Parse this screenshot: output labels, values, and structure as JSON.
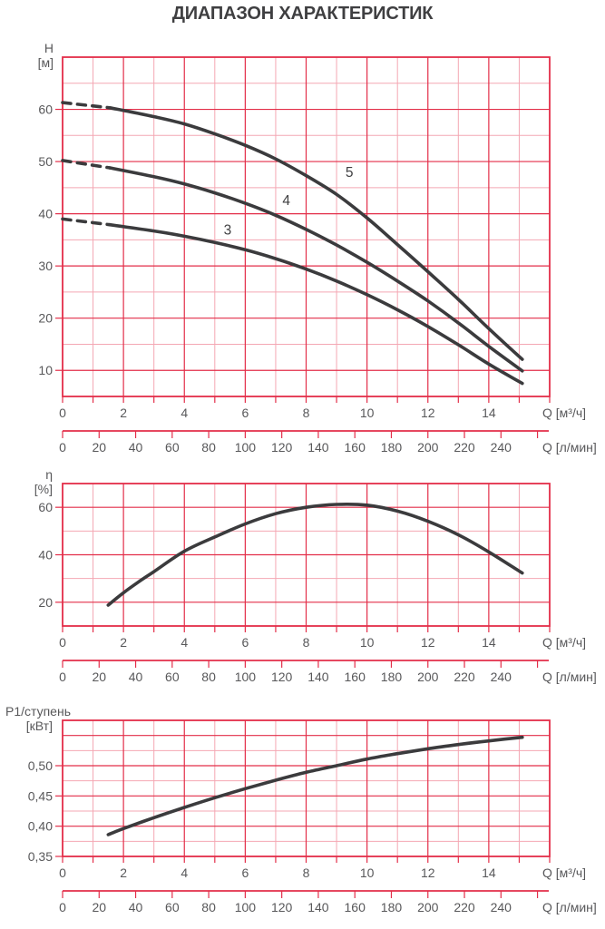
{
  "title": "ДИАПАЗОН ХАРАКТЕРИСТИК",
  "colors": {
    "grid_major": "#e32e49",
    "grid_minor": "#f4a7b3",
    "curve": "#3b3b3d",
    "tick_text": "#58585a",
    "label_text": "#3f3f41"
  },
  "chart_data": [
    {
      "type": "line",
      "id": "head",
      "ylabel_lines": [
        "H",
        "[м]"
      ],
      "xlabel": "Q [м³/ч]",
      "xlabel2": "Q [л/мин]",
      "xlim": [
        0,
        16
      ],
      "x_major": 2,
      "x_minor": 1,
      "ylim": [
        5,
        70
      ],
      "y_major": 10,
      "y_minor": 5,
      "x_ticks": [
        0,
        2,
        4,
        6,
        8,
        10,
        12,
        14
      ],
      "x_tick_labels": [
        "0",
        "2",
        "4",
        "6",
        "8",
        "10",
        "12",
        "14"
      ],
      "y_ticks": [
        10,
        20,
        30,
        40,
        50,
        60
      ],
      "y_tick_labels": [
        "10",
        "20",
        "30",
        "40",
        "50",
        "60"
      ],
      "x2_ticks": [
        0,
        20,
        40,
        60,
        80,
        100,
        120,
        140,
        160,
        180,
        200,
        220,
        240,
        260
      ],
      "x2_tick_labels": [
        "0",
        "20",
        "40",
        "60",
        "80",
        "100",
        "120",
        "140",
        "160",
        "180",
        "200",
        "220",
        "240",
        ""
      ],
      "x2_units_per_x1": 16.6667,
      "series": [
        {
          "name": "3",
          "dash_points": [
            [
              0,
              39.0
            ],
            [
              1.55,
              37.9
            ]
          ],
          "points": [
            [
              1.55,
              37.9
            ],
            [
              3,
              36.7
            ],
            [
              4,
              35.7
            ],
            [
              5,
              34.5
            ],
            [
              6,
              33.1
            ],
            [
              7,
              31.4
            ],
            [
              8,
              29.4
            ],
            [
              9,
              27.1
            ],
            [
              10,
              24.5
            ],
            [
              11,
              21.6
            ],
            [
              12,
              18.4
            ],
            [
              13,
              14.9
            ],
            [
              14,
              11.2
            ],
            [
              15.1,
              7.5
            ]
          ]
        },
        {
          "name": "4",
          "dash_points": [
            [
              0,
              50.2
            ],
            [
              1.55,
              48.8
            ]
          ],
          "points": [
            [
              1.55,
              48.8
            ],
            [
              3,
              47.1
            ],
            [
              4,
              45.7
            ],
            [
              5,
              44.0
            ],
            [
              6,
              42.0
            ],
            [
              7,
              39.7
            ],
            [
              8,
              37.0
            ],
            [
              9,
              34.0
            ],
            [
              10,
              30.7
            ],
            [
              11,
              27.1
            ],
            [
              12,
              23.3
            ],
            [
              13,
              19.1
            ],
            [
              14,
              14.6
            ],
            [
              15.1,
              9.9
            ]
          ]
        },
        {
          "name": "5",
          "dash_points": [
            [
              0,
              61.3
            ],
            [
              1.55,
              60.3
            ]
          ],
          "points": [
            [
              1.55,
              60.3
            ],
            [
              3,
              58.6
            ],
            [
              4,
              57.2
            ],
            [
              5,
              55.3
            ],
            [
              6,
              53.1
            ],
            [
              7,
              50.5
            ],
            [
              8,
              47.3
            ],
            [
              9,
              43.7
            ],
            [
              10,
              39.2
            ],
            [
              11,
              34.1
            ],
            [
              12,
              28.9
            ],
            [
              13,
              23.6
            ],
            [
              14,
              18.0
            ],
            [
              15.1,
              12.1
            ]
          ]
        }
      ],
      "curve_labels": [
        {
          "text": "3",
          "x": 5.42,
          "y": 36.9
        },
        {
          "text": "4",
          "x": 7.35,
          "y": 42.5
        },
        {
          "text": "5",
          "x": 9.42,
          "y": 47.9
        }
      ]
    },
    {
      "type": "line",
      "id": "efficiency",
      "ylabel_lines": [
        "η",
        "[%]"
      ],
      "xlabel": "Q [м³/ч]",
      "xlabel2": "Q [л/мин]",
      "xlim": [
        0,
        16
      ],
      "x_major": 2,
      "x_minor": 1,
      "ylim": [
        10,
        70
      ],
      "y_major": 20,
      "y_minor": 10,
      "x_ticks": [
        0,
        2,
        4,
        6,
        8,
        10,
        12,
        14
      ],
      "x_tick_labels": [
        "0",
        "2",
        "4",
        "6",
        "8",
        "10",
        "12",
        "14"
      ],
      "y_ticks": [
        20,
        40,
        60
      ],
      "y_tick_labels": [
        "20",
        "40",
        "60"
      ],
      "x2_ticks": [
        0,
        20,
        40,
        60,
        80,
        100,
        120,
        140,
        160,
        180,
        200,
        220,
        240,
        260
      ],
      "x2_tick_labels": [
        "0",
        "20",
        "40",
        "60",
        "80",
        "100",
        "120",
        "140",
        "160",
        "180",
        "200",
        "220",
        "240",
        ""
      ],
      "x2_units_per_x1": 16.6667,
      "series": [
        {
          "name": "η",
          "dash_points": [],
          "points": [
            [
              1.5,
              18.8
            ],
            [
              2,
              24.0
            ],
            [
              2.5,
              28.6
            ],
            [
              3,
              32.9
            ],
            [
              4,
              41.5
            ],
            [
              5,
              47.5
            ],
            [
              6,
              53.0
            ],
            [
              7,
              57.3
            ],
            [
              8,
              60.0
            ],
            [
              9,
              61.2
            ],
            [
              10,
              60.9
            ],
            [
              11,
              58.4
            ],
            [
              12,
              54.1
            ],
            [
              13,
              48.4
            ],
            [
              14,
              41.2
            ],
            [
              15.1,
              32.3
            ]
          ]
        }
      ],
      "curve_labels": []
    },
    {
      "type": "line",
      "id": "power",
      "ylabel_lines": [
        "P1/ступень",
        "[кВт]"
      ],
      "xlabel": "Q [м³/ч]",
      "xlabel2": "Q [л/мин]",
      "xlim": [
        0,
        16
      ],
      "x_major": 2,
      "x_minor": 1,
      "ylim": [
        0.35,
        0.575
      ],
      "y_major": 0.05,
      "y_minor": 0.025,
      "x_ticks": [
        0,
        2,
        4,
        6,
        8,
        10,
        12,
        14
      ],
      "x_tick_labels": [
        "0",
        "2",
        "4",
        "6",
        "8",
        "10",
        "12",
        "14"
      ],
      "y_ticks": [
        0.35,
        0.4,
        0.45,
        0.5
      ],
      "y_tick_labels": [
        "0,35",
        "0,40",
        "0,45",
        "0,50"
      ],
      "x2_ticks": [
        0,
        20,
        40,
        60,
        80,
        100,
        120,
        140,
        160,
        180,
        200,
        220,
        240,
        260
      ],
      "x2_tick_labels": [
        "0",
        "20",
        "40",
        "60",
        "80",
        "100",
        "120",
        "140",
        "160",
        "180",
        "200",
        "220",
        "240",
        ""
      ],
      "x2_units_per_x1": 16.6667,
      "series": [
        {
          "name": "P1",
          "dash_points": [],
          "points": [
            [
              1.5,
              0.386
            ],
            [
              2,
              0.396
            ],
            [
              3,
              0.414
            ],
            [
              4,
              0.431
            ],
            [
              5,
              0.447
            ],
            [
              6,
              0.462
            ],
            [
              7,
              0.476
            ],
            [
              8,
              0.489
            ],
            [
              9,
              0.5
            ],
            [
              10,
              0.511
            ],
            [
              11,
              0.52
            ],
            [
              12,
              0.528
            ],
            [
              13,
              0.535
            ],
            [
              14,
              0.541
            ],
            [
              15.1,
              0.547
            ]
          ]
        }
      ],
      "curve_labels": []
    }
  ]
}
